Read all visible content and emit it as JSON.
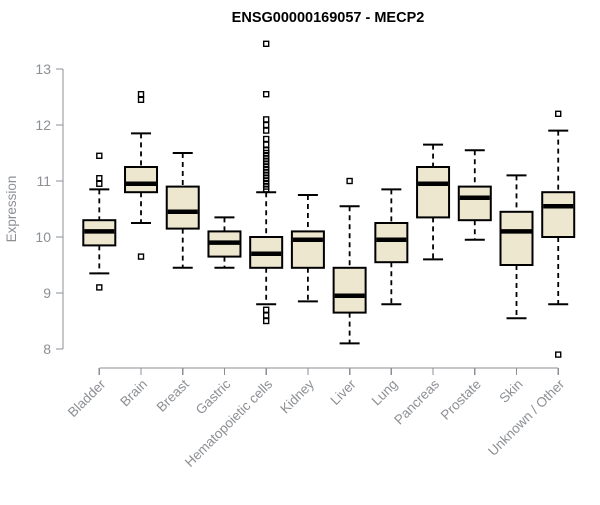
{
  "window": {
    "background": "#ffffff"
  },
  "chart_data": {
    "type": "boxplot",
    "title": "ENSG00000169057 - MECP2",
    "xlabel": "",
    "ylabel": "Expression",
    "ylim": [
      7.8,
      13.5
    ],
    "yticks": [
      8,
      9,
      10,
      11,
      12,
      13
    ],
    "grid": false,
    "legend": "none",
    "categories": [
      "Bladder",
      "Brain",
      "Breast",
      "Gastric",
      "Hematopoietic cells",
      "Kidney",
      "Liver",
      "Lung",
      "Pancreas",
      "Prostate",
      "Skin",
      "Unknown / Other"
    ],
    "series": [
      {
        "name": "Bladder",
        "whisker_low": 9.35,
        "q1": 9.85,
        "median": 10.1,
        "q3": 10.3,
        "whisker_high": 10.85,
        "outliers": [
          11.45,
          11.05,
          10.95,
          9.1
        ]
      },
      {
        "name": "Brain",
        "whisker_low": 10.25,
        "q1": 10.8,
        "median": 10.95,
        "q3": 11.25,
        "whisker_high": 11.85,
        "outliers": [
          12.55,
          12.45,
          9.65
        ]
      },
      {
        "name": "Breast",
        "whisker_low": 9.45,
        "q1": 10.15,
        "median": 10.45,
        "q3": 10.9,
        "whisker_high": 11.5,
        "outliers": []
      },
      {
        "name": "Gastric",
        "whisker_low": 9.45,
        "q1": 9.65,
        "median": 9.9,
        "q3": 10.1,
        "whisker_high": 10.35,
        "outliers": []
      },
      {
        "name": "Hematopoietic cells",
        "whisker_low": 8.8,
        "q1": 9.45,
        "median": 9.7,
        "q3": 10.0,
        "whisker_high": 10.8,
        "outliers": [
          13.45,
          12.55,
          12.1,
          12.0,
          11.9,
          11.75,
          11.65,
          11.55,
          11.5,
          11.45,
          11.4,
          11.35,
          11.3,
          11.25,
          11.2,
          11.15,
          11.1,
          11.05,
          11.0,
          10.95,
          10.9,
          10.85,
          8.7,
          8.6,
          8.5
        ]
      },
      {
        "name": "Kidney",
        "whisker_low": 8.85,
        "q1": 9.45,
        "median": 9.95,
        "q3": 10.1,
        "whisker_high": 10.75,
        "outliers": []
      },
      {
        "name": "Liver",
        "whisker_low": 8.1,
        "q1": 8.65,
        "median": 8.95,
        "q3": 9.45,
        "whisker_high": 10.55,
        "outliers": [
          11.0
        ]
      },
      {
        "name": "Lung",
        "whisker_low": 8.8,
        "q1": 9.55,
        "median": 9.95,
        "q3": 10.25,
        "whisker_high": 10.85,
        "outliers": []
      },
      {
        "name": "Pancreas",
        "whisker_low": 9.6,
        "q1": 10.35,
        "median": 10.95,
        "q3": 11.25,
        "whisker_high": 11.65,
        "outliers": []
      },
      {
        "name": "Prostate",
        "whisker_low": 9.95,
        "q1": 10.3,
        "median": 10.7,
        "q3": 10.9,
        "whisker_high": 11.55,
        "outliers": []
      },
      {
        "name": "Skin",
        "whisker_low": 8.55,
        "q1": 9.5,
        "median": 10.1,
        "q3": 10.45,
        "whisker_high": 11.1,
        "outliers": []
      },
      {
        "name": "Unknown / Other",
        "whisker_low": 8.8,
        "q1": 10.0,
        "median": 10.55,
        "q3": 10.8,
        "whisker_high": 11.9,
        "outliers": [
          12.2,
          7.9
        ]
      }
    ],
    "colors": {
      "box_fill": "#EDE7CF",
      "box_stroke": "#000000",
      "median": "#000000",
      "whisker": "#000000",
      "outlier": "#000000",
      "axis": "#8C8F94",
      "tick_text": "#8C8F94",
      "title_text": "#000000"
    }
  }
}
